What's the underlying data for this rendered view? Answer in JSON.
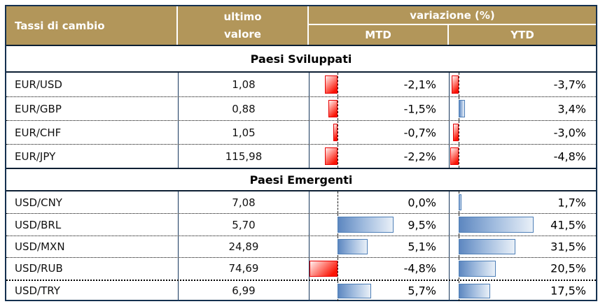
{
  "header": {
    "title": "Tassi di cambio",
    "last_value_line1": "ultimo",
    "last_value_line2": "valore",
    "variation": "variazione (%)",
    "mtd": "MTD",
    "ytd": "YTD"
  },
  "colors": {
    "header_bg": "#B2965A",
    "header_text": "#FFFFFF",
    "border_navy": "#17375D",
    "negative_bar_border": "#E60000",
    "negative_bar_fill": "#FA1405",
    "positive_bar_border": "#4E7FB7",
    "positive_bar_fill": "#5D87C0"
  },
  "chart_data": {
    "type": "table",
    "title": "Tassi di cambio",
    "columns": [
      "ultimo valore",
      "variazione (%) MTD",
      "variazione (%) YTD"
    ],
    "bar_axis": {
      "mtd_min": -4.8,
      "mtd_max": 9.5,
      "ytd_min": -4.8,
      "ytd_max": 41.5
    },
    "sections": [
      {
        "label": "Paesi Sviluppati",
        "rows": [
          {
            "pair": "EUR/USD",
            "value": "1,08",
            "value_num": 1.08,
            "mtd": "-2,1%",
            "mtd_num": -2.1,
            "ytd": "-3,7%",
            "ytd_num": -3.7
          },
          {
            "pair": "EUR/GBP",
            "value": "0,88",
            "value_num": 0.88,
            "mtd": "-1,5%",
            "mtd_num": -1.5,
            "ytd": "3,4%",
            "ytd_num": 3.4
          },
          {
            "pair": "EUR/CHF",
            "value": "1,05",
            "value_num": 1.05,
            "mtd": "-0,7%",
            "mtd_num": -0.7,
            "ytd": "-3,0%",
            "ytd_num": -3.0
          },
          {
            "pair": "EUR/JPY",
            "value": "115,98",
            "value_num": 115.98,
            "mtd": "-2,2%",
            "mtd_num": -2.2,
            "ytd": "-4,8%",
            "ytd_num": -4.8
          }
        ]
      },
      {
        "label": "Paesi Emergenti",
        "rows": [
          {
            "pair": "USD/CNY",
            "value": "7,08",
            "value_num": 7.08,
            "mtd": "0,0%",
            "mtd_num": 0.0,
            "ytd": "1,7%",
            "ytd_num": 1.7
          },
          {
            "pair": "USD/BRL",
            "value": "5,70",
            "value_num": 5.7,
            "mtd": "9,5%",
            "mtd_num": 9.5,
            "ytd": "41,5%",
            "ytd_num": 41.5
          },
          {
            "pair": "USD/MXN",
            "value": "24,89",
            "value_num": 24.89,
            "mtd": "5,1%",
            "mtd_num": 5.1,
            "ytd": "31,5%",
            "ytd_num": 31.5
          },
          {
            "pair": "USD/RUB",
            "value": "74,69",
            "value_num": 74.69,
            "mtd": "-4,8%",
            "mtd_num": -4.8,
            "ytd": "20,5%",
            "ytd_num": 20.5
          },
          {
            "pair": "USD/TRY",
            "value": "6,99",
            "value_num": 6.99,
            "mtd": "5,7%",
            "mtd_num": 5.7,
            "ytd": "17,5%",
            "ytd_num": 17.5
          }
        ]
      }
    ]
  }
}
